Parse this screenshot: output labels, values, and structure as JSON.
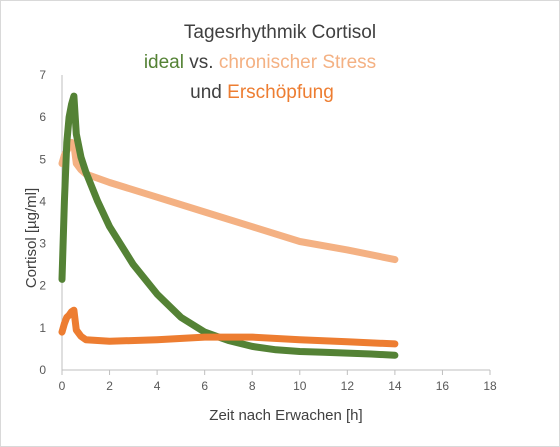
{
  "chart_data": {
    "type": "line",
    "title": {
      "line1": "Tagesrhythmik Cortisol",
      "line2_part1": "ideal",
      "line2_part2": " vs. ",
      "line2_part3": "chronischer Stress",
      "line3_part1": "und ",
      "line3_part2": "Erschöpfung"
    },
    "xlabel": "Zeit nach Erwachen [h]",
    "ylabel": "Cortisol [µg/ml]",
    "xlim": [
      0,
      18
    ],
    "ylim": [
      0,
      7
    ],
    "xticks": [
      "0",
      "2",
      "4",
      "6",
      "8",
      "10",
      "12",
      "14",
      "16",
      "18"
    ],
    "yticks": [
      "0",
      "1",
      "2",
      "3",
      "4",
      "5",
      "6",
      "7"
    ],
    "grid": false,
    "colors": {
      "ideal": "#548235",
      "stress": "#F4B183",
      "exhaustion": "#ED7D31",
      "title_main": "#404040",
      "axis": "#bfbfbf"
    },
    "series": [
      {
        "key": "ideal",
        "x": [
          0,
          0.1,
          0.2,
          0.3,
          0.4,
          0.5,
          0.6,
          0.8,
          1,
          1.5,
          2,
          3,
          4,
          5,
          6,
          7,
          8,
          9,
          10,
          11,
          12,
          13,
          14
        ],
        "y": [
          2.15,
          4.0,
          5.4,
          6.0,
          6.3,
          6.5,
          5.6,
          5.05,
          4.7,
          4.0,
          3.4,
          2.5,
          1.8,
          1.25,
          0.9,
          0.7,
          0.56,
          0.48,
          0.44,
          0.42,
          0.4,
          0.38,
          0.35
        ]
      },
      {
        "key": "stress",
        "x": [
          0,
          0.1,
          0.2,
          0.3,
          0.4,
          0.5,
          0.6,
          0.8,
          1,
          2,
          4,
          6,
          8,
          10,
          12,
          14
        ],
        "y": [
          4.9,
          5.1,
          5.2,
          5.3,
          5.4,
          5.35,
          4.9,
          4.75,
          4.65,
          4.45,
          4.1,
          3.75,
          3.4,
          3.05,
          2.85,
          2.62
        ]
      },
      {
        "key": "exhaustion",
        "x": [
          0,
          0.1,
          0.2,
          0.3,
          0.4,
          0.5,
          0.6,
          0.8,
          1,
          2,
          4,
          6,
          8,
          10,
          12,
          14
        ],
        "y": [
          0.9,
          1.1,
          1.25,
          1.3,
          1.38,
          1.42,
          0.95,
          0.8,
          0.72,
          0.68,
          0.72,
          0.78,
          0.78,
          0.72,
          0.67,
          0.62
        ]
      }
    ]
  }
}
